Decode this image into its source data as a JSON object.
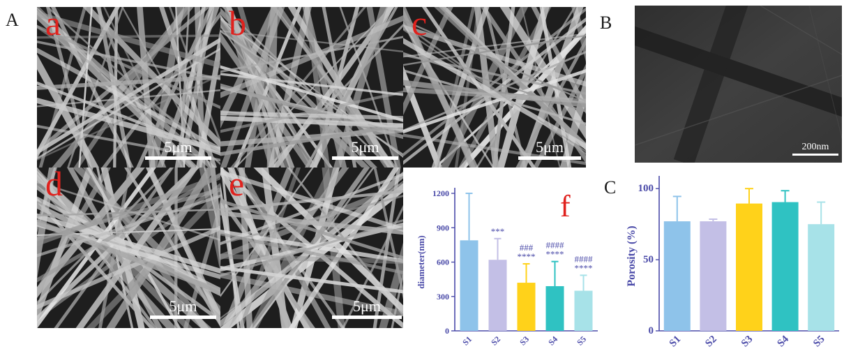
{
  "panels": {
    "A": "A",
    "B": "B",
    "C": "C"
  },
  "sem_images": [
    {
      "letter": "a",
      "scale": "5μm"
    },
    {
      "letter": "b",
      "scale": "5μm"
    },
    {
      "letter": "c",
      "scale": "5μm"
    },
    {
      "letter": "d",
      "scale": "5μm"
    },
    {
      "letter": "e",
      "scale": "5μm"
    }
  ],
  "tem_image": {
    "scale": "200nm"
  },
  "colors": {
    "axis": "#4a4aa8",
    "letter": "#e0221e",
    "S1": "#8ec3ea",
    "S2": "#c3bfe6",
    "S3": "#ffd21a",
    "S4": "#2fc2c2",
    "S5": "#a7e2e8"
  },
  "chart_data": [
    {
      "type": "bar",
      "panel_label": "f",
      "ylabel": "diameter(nm)",
      "categories": [
        "S1",
        "S2",
        "S3",
        "S4",
        "S5"
      ],
      "values": [
        790,
        620,
        420,
        390,
        350
      ],
      "errors": [
        410,
        185,
        165,
        215,
        135
      ],
      "ylim": [
        0,
        1200
      ],
      "yticks": [
        "0",
        "300",
        "600",
        "900",
        "1200"
      ],
      "annotations": [
        {
          "category": "S2",
          "lines": [
            "***"
          ]
        },
        {
          "category": "S3",
          "lines": [
            "###",
            "****"
          ]
        },
        {
          "category": "S4",
          "lines": [
            "####",
            "****"
          ]
        },
        {
          "category": "S5",
          "lines": [
            "####",
            "****"
          ]
        }
      ]
    },
    {
      "type": "bar",
      "ylabel": "Porosity (%)",
      "categories": [
        "S1",
        "S2",
        "S3",
        "S4",
        "S5"
      ],
      "values": [
        77,
        77,
        89.5,
        90.5,
        75
      ],
      "errors": [
        17.5,
        1.5,
        10.5,
        8,
        15.5
      ],
      "ylim": [
        0,
        105
      ],
      "yticks": [
        "0",
        "50",
        "100"
      ]
    }
  ]
}
